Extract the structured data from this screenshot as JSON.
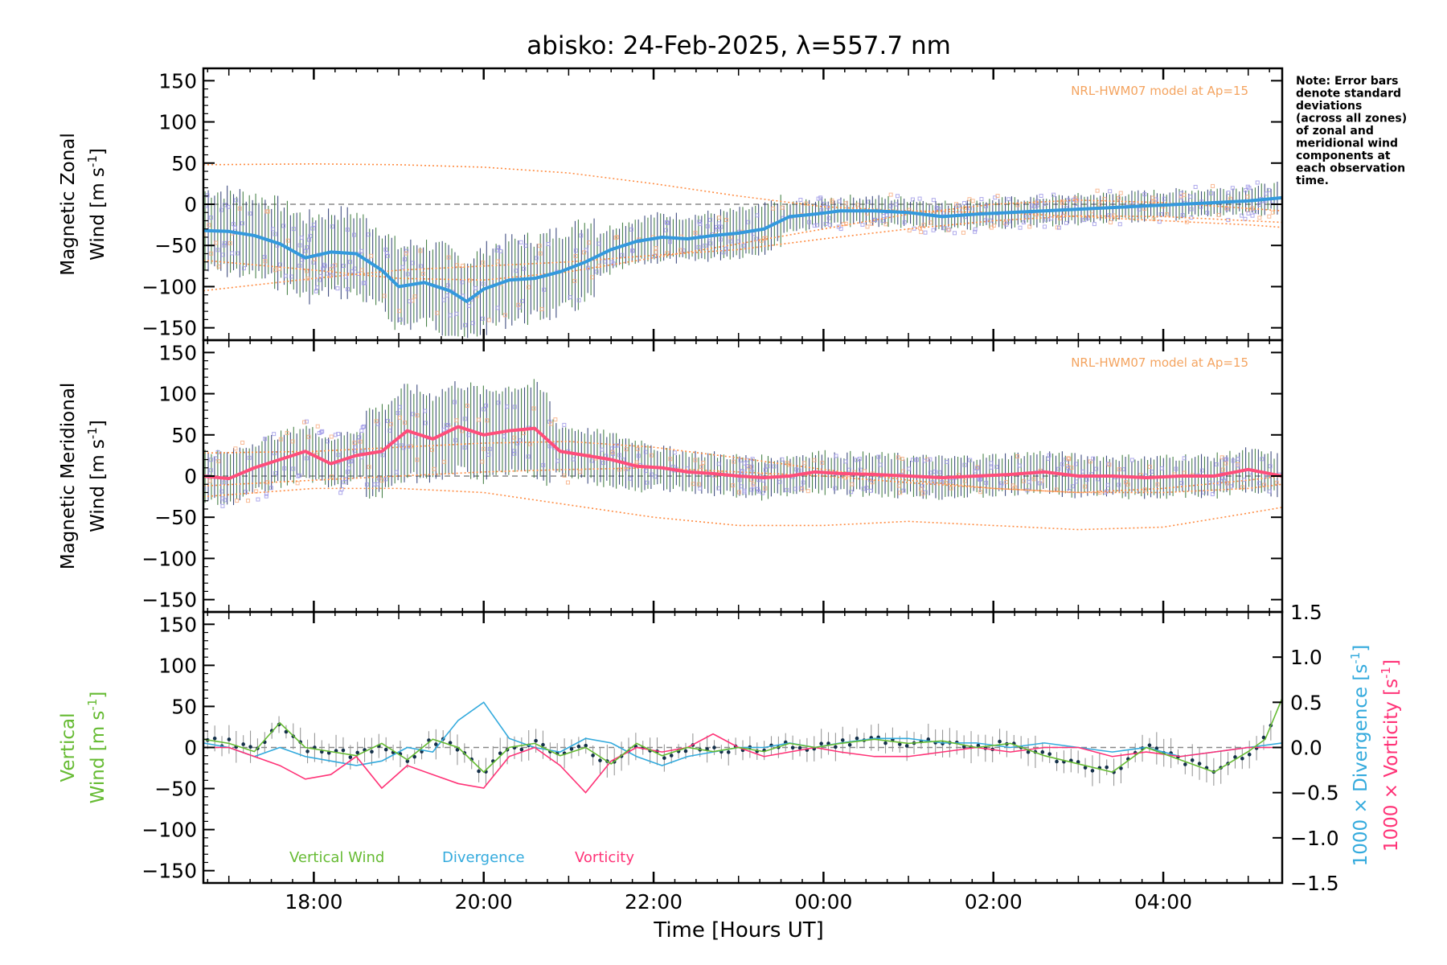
{
  "title": "abisko: 24-Feb-2025, λ=557.7 nm",
  "note_lines": [
    "Note: Error bars",
    "denote standard",
    "deviations",
    "(across all zones)",
    "of zonal and",
    "meridional wind",
    "components at",
    "each observation",
    "time."
  ],
  "model_label": "NRL-HWM07 model at Ap=15",
  "xlabel": "Time [Hours UT]",
  "colors": {
    "zonal_mean": "#3399dd",
    "zonal_dark": "#1a3ccc",
    "meridional_mean": "#ff4d7a",
    "model": "#ff8c42",
    "scatter": "#9a93e6",
    "errorbar_a": "#2b6e2b",
    "errorbar_b": "#1f2f6b",
    "vertical": "#66bb33",
    "divergence": "#33aadd",
    "vorticity": "#ff3377",
    "axis": "#000000",
    "zero": "#888888"
  },
  "chart_data": [
    {
      "type": "line",
      "panel": "zonal",
      "ylabel": [
        "Magnetic Zonal",
        "Wind [m s",
        "-1",
        "]"
      ],
      "ylim": [
        -165,
        165
      ],
      "yticks": [
        -150,
        -100,
        -50,
        0,
        50,
        100,
        150
      ],
      "xlim": [
        16.7,
        29.4
      ],
      "xtick_labels": [
        "18:00",
        "20:00",
        "22:00",
        "00:00",
        "02:00",
        "04:00"
      ],
      "xtick_hours": [
        18,
        20,
        22,
        24,
        26,
        28
      ],
      "series": [
        {
          "kind": "mean",
          "x": [
            16.7,
            17.0,
            17.3,
            17.6,
            17.9,
            18.2,
            18.5,
            18.8,
            19.0,
            19.3,
            19.6,
            19.8,
            20.0,
            20.3,
            20.6,
            20.9,
            21.2,
            21.5,
            21.8,
            22.1,
            22.4,
            22.7,
            23.0,
            23.3,
            23.6,
            23.9,
            24.2,
            24.6,
            25.0,
            25.4,
            25.8,
            26.2,
            26.6,
            27.0,
            27.4,
            27.8,
            28.2,
            28.6,
            29.0,
            29.4
          ],
          "y": [
            -32,
            -33,
            -38,
            -48,
            -65,
            -58,
            -60,
            -80,
            -100,
            -95,
            -105,
            -118,
            -103,
            -92,
            -90,
            -82,
            -70,
            -55,
            -45,
            -40,
            -42,
            -38,
            -35,
            -30,
            -15,
            -12,
            -8,
            -8,
            -10,
            -15,
            -12,
            -10,
            -8,
            -6,
            -4,
            -2,
            0,
            2,
            4,
            8
          ]
        },
        {
          "kind": "model",
          "x": [
            16.7,
            18,
            19,
            20,
            21,
            22,
            23,
            24,
            25,
            26,
            27,
            28,
            29,
            29.4
          ],
          "y": [
            48,
            49,
            48,
            45,
            38,
            25,
            10,
            -3,
            -8,
            -10,
            -15,
            -20,
            -25,
            -28
          ]
        },
        {
          "kind": "model",
          "x": [
            16.7,
            18,
            19,
            20,
            21,
            22,
            23,
            24,
            25,
            26,
            27,
            28,
            29,
            29.4
          ],
          "y": [
            -105,
            -90,
            -80,
            -75,
            -70,
            -62,
            -55,
            -42,
            -30,
            -20,
            -14,
            -15,
            -20,
            -22
          ]
        },
        {
          "kind": "model",
          "x": [
            16.7,
            18,
            19,
            20,
            21,
            22,
            23,
            24,
            25,
            26,
            27,
            28,
            29,
            29.4
          ],
          "y": [
            -68,
            -80,
            -90,
            -92,
            -82,
            -65,
            -48,
            -30,
            -12,
            0,
            5,
            2,
            -5,
            -8
          ]
        }
      ]
    },
    {
      "type": "line",
      "panel": "meridional",
      "ylabel": [
        "Magnetic Meridional",
        "Wind [m s",
        "-1",
        "]"
      ],
      "ylim": [
        -165,
        165
      ],
      "yticks": [
        -150,
        -100,
        -50,
        0,
        50,
        100,
        150
      ],
      "series": [
        {
          "kind": "mean",
          "x": [
            16.7,
            17.0,
            17.3,
            17.6,
            17.9,
            18.2,
            18.5,
            18.8,
            19.1,
            19.4,
            19.7,
            20.0,
            20.3,
            20.6,
            20.9,
            21.2,
            21.5,
            21.8,
            22.1,
            22.4,
            22.7,
            23.0,
            23.3,
            23.6,
            23.9,
            24.2,
            24.6,
            25.0,
            25.4,
            25.8,
            26.2,
            26.6,
            27.0,
            27.4,
            27.8,
            28.2,
            28.6,
            29.0,
            29.4
          ],
          "y": [
            0,
            -3,
            10,
            20,
            30,
            15,
            25,
            30,
            55,
            45,
            60,
            50,
            55,
            58,
            30,
            25,
            20,
            12,
            10,
            5,
            3,
            0,
            -2,
            0,
            5,
            3,
            2,
            0,
            -2,
            0,
            2,
            5,
            0,
            0,
            -2,
            0,
            0,
            8,
            0
          ]
        },
        {
          "kind": "model",
          "x": [
            16.7,
            18,
            19,
            20,
            21,
            22,
            23,
            24,
            25,
            26,
            27,
            28,
            29,
            29.4
          ],
          "y": [
            28,
            30,
            35,
            40,
            42,
            35,
            22,
            8,
            -5,
            -15,
            -20,
            -15,
            -5,
            0
          ]
        },
        {
          "kind": "model",
          "x": [
            16.7,
            18,
            19,
            20,
            21,
            22,
            23,
            24,
            25,
            26,
            27,
            28,
            29,
            29.4
          ],
          "y": [
            -25,
            -15,
            -15,
            -20,
            -35,
            -50,
            -60,
            -60,
            -55,
            -60,
            -65,
            -62,
            -45,
            -38
          ]
        },
        {
          "kind": "model",
          "x": [
            16.7,
            18,
            19,
            20,
            21,
            22,
            23,
            24,
            25,
            26,
            27,
            28,
            29,
            29.4
          ],
          "y": [
            -12,
            -5,
            0,
            5,
            8,
            10,
            5,
            0,
            -8,
            -15,
            -20,
            -20,
            -15,
            -10
          ]
        }
      ]
    },
    {
      "type": "line",
      "panel": "vertical",
      "ylabel": [
        "Vertical",
        "Wind [m s",
        "-1",
        "]"
      ],
      "ylim": [
        -165,
        165
      ],
      "yticks": [
        -150,
        -100,
        -50,
        0,
        50,
        100,
        150
      ],
      "y2label_div": [
        "1000 × Divergence [s",
        "-1",
        "]"
      ],
      "y2label_vor": [
        "1000 × Vorticity [s",
        "-1",
        "]"
      ],
      "y2lim": [
        -1.5,
        1.5
      ],
      "y2ticks": [
        -1.5,
        -1.0,
        -0.5,
        0.0,
        0.5,
        1.0,
        1.5
      ],
      "y2tick_labels": [
        "−1.5",
        "−1.0",
        "−0.5",
        "0.0",
        "0.5",
        "1.0",
        "1.5"
      ],
      "legend": [
        "Vertical Wind",
        "Divergence",
        "Vorticity"
      ],
      "series": [
        {
          "name": "Vertical Wind",
          "x": [
            16.7,
            17.0,
            17.3,
            17.6,
            17.9,
            18.2,
            18.5,
            18.8,
            19.1,
            19.4,
            19.7,
            20.0,
            20.3,
            20.6,
            20.9,
            21.2,
            21.5,
            21.8,
            22.1,
            22.4,
            22.7,
            23.0,
            23.3,
            23.6,
            23.9,
            24.2,
            24.6,
            25.0,
            25.4,
            25.8,
            26.2,
            26.6,
            27.0,
            27.4,
            27.8,
            28.2,
            28.6,
            29.0,
            29.2,
            29.4
          ],
          "y": [
            10,
            5,
            -5,
            30,
            0,
            -5,
            -10,
            5,
            -15,
            10,
            0,
            -30,
            0,
            5,
            -10,
            0,
            -20,
            5,
            -10,
            0,
            -5,
            0,
            -5,
            5,
            0,
            5,
            10,
            5,
            8,
            0,
            5,
            -10,
            -20,
            -30,
            0,
            -15,
            -30,
            -5,
            10,
            60
          ]
        },
        {
          "name": "Divergence",
          "x": [
            16.7,
            17.0,
            17.3,
            17.6,
            17.9,
            18.2,
            18.5,
            18.8,
            19.1,
            19.4,
            19.7,
            20.0,
            20.3,
            20.6,
            20.9,
            21.2,
            21.5,
            21.8,
            22.1,
            22.4,
            22.7,
            23.0,
            23.3,
            23.6,
            23.9,
            24.2,
            24.6,
            25.0,
            25.4,
            25.8,
            26.2,
            26.6,
            27.0,
            27.4,
            27.8,
            28.2,
            28.6,
            29.0,
            29.4
          ],
          "y": [
            0.05,
            0.0,
            -0.1,
            0.0,
            -0.1,
            -0.15,
            -0.2,
            -0.15,
            0.0,
            -0.05,
            0.3,
            0.5,
            0.1,
            0.0,
            -0.05,
            0.1,
            0.05,
            -0.1,
            -0.2,
            -0.1,
            -0.05,
            0.0,
            0.0,
            0.05,
            0.0,
            0.05,
            0.1,
            0.1,
            0.05,
            0.05,
            0.0,
            0.05,
            0.0,
            -0.05,
            0.0,
            -0.1,
            -0.05,
            0.0,
            0.05
          ]
        },
        {
          "name": "Vorticity",
          "x": [
            16.7,
            17.0,
            17.3,
            17.6,
            17.9,
            18.2,
            18.5,
            18.8,
            19.1,
            19.4,
            19.7,
            20.0,
            20.3,
            20.6,
            20.9,
            21.2,
            21.5,
            21.8,
            22.1,
            22.4,
            22.7,
            23.0,
            23.3,
            23.6,
            23.9,
            24.2,
            24.6,
            25.0,
            25.4,
            25.8,
            26.2,
            26.6,
            27.0,
            27.4,
            27.8,
            28.2,
            28.6,
            29.0,
            29.4
          ],
          "y": [
            0.0,
            0.0,
            -0.1,
            -0.2,
            -0.35,
            -0.3,
            -0.1,
            -0.45,
            -0.2,
            -0.3,
            -0.4,
            -0.45,
            -0.1,
            0.0,
            -0.2,
            -0.5,
            -0.15,
            0.0,
            -0.05,
            0.0,
            0.15,
            0.0,
            -0.1,
            -0.05,
            0.0,
            -0.05,
            -0.1,
            -0.1,
            -0.05,
            0.0,
            -0.05,
            0.0,
            0.0,
            -0.1,
            -0.05,
            -0.1,
            -0.05,
            0.0,
            0.0
          ]
        }
      ]
    }
  ]
}
